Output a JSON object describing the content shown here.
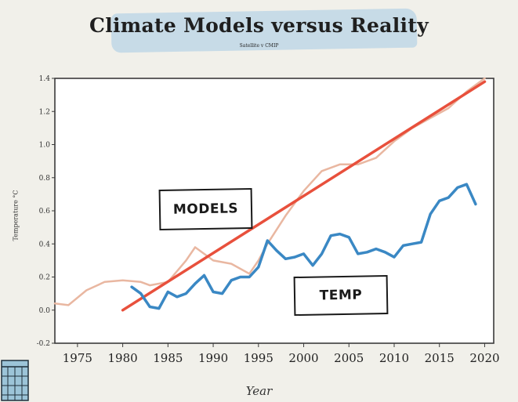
{
  "title": "Climate Models versus Reality",
  "subtitle": "Satellite v CMIP",
  "chart_data": {
    "type": "line",
    "title": "Climate Models versus Reality",
    "subtitle": "Satellite v CMIP",
    "xlabel": "Year",
    "ylabel": "Temperature °C",
    "xlim": [
      1972.5,
      2021
    ],
    "ylim": [
      -0.2,
      1.4
    ],
    "x_ticks": [
      1975,
      1980,
      1985,
      1990,
      1995,
      2000,
      2005,
      2010,
      2015,
      2020
    ],
    "y_ticks": [
      -0.2,
      0.0,
      0.2,
      0.4,
      0.6,
      0.8,
      1.0,
      1.2,
      1.4
    ],
    "y_tick_labels": [
      "-0.2",
      "0.0",
      "0.2",
      "0.4",
      "0.6",
      "0.8",
      "1.0",
      "1.2",
      "1.4"
    ],
    "grid": false,
    "series": [
      {
        "name": "MODELS",
        "color": "#e8503c",
        "x": [
          1980,
          2020
        ],
        "y": [
          0.0,
          1.38
        ]
      },
      {
        "name": "",
        "color": "#e9b7a1",
        "x": [
          1972.5,
          1974,
          1976,
          1978,
          1980,
          1982,
          1983,
          1985,
          1987,
          1988,
          1989,
          1990,
          1992,
          1994,
          1995,
          1996,
          1998,
          2000,
          2002,
          2004,
          2006,
          2008,
          2010,
          2012,
          2014,
          2016,
          2018,
          2020
        ],
        "y": [
          0.04,
          0.03,
          0.12,
          0.17,
          0.18,
          0.17,
          0.15,
          0.17,
          0.3,
          0.38,
          0.34,
          0.3,
          0.28,
          0.22,
          0.3,
          0.4,
          0.57,
          0.72,
          0.84,
          0.88,
          0.88,
          0.92,
          1.02,
          1.1,
          1.16,
          1.22,
          1.32,
          1.4
        ]
      },
      {
        "name": "TEMP",
        "color": "#3a88c4",
        "x": [
          1981,
          1982,
          1983,
          1984,
          1985,
          1986,
          1987,
          1988,
          1989,
          1990,
          1991,
          1992,
          1993,
          1994,
          1995,
          1996,
          1997,
          1998,
          1999,
          2000,
          2001,
          2002,
          2003,
          2004,
          2005,
          2006,
          2007,
          2008,
          2009,
          2010,
          2011,
          2012,
          2013,
          2014,
          2015,
          2016,
          2017,
          2018,
          2019
        ],
        "y": [
          0.14,
          0.1,
          0.02,
          0.01,
          0.11,
          0.08,
          0.1,
          0.16,
          0.21,
          0.11,
          0.1,
          0.18,
          0.2,
          0.2,
          0.26,
          0.42,
          0.36,
          0.31,
          0.32,
          0.34,
          0.27,
          0.34,
          0.45,
          0.46,
          0.44,
          0.34,
          0.35,
          0.37,
          0.35,
          0.32,
          0.39,
          0.4,
          0.41,
          0.58,
          0.66,
          0.68,
          0.74,
          0.76,
          0.64
        ]
      }
    ]
  },
  "labels": {
    "models": "MODELS",
    "temp": "TEMP"
  },
  "icons": {
    "corner": "calendar-icon"
  }
}
